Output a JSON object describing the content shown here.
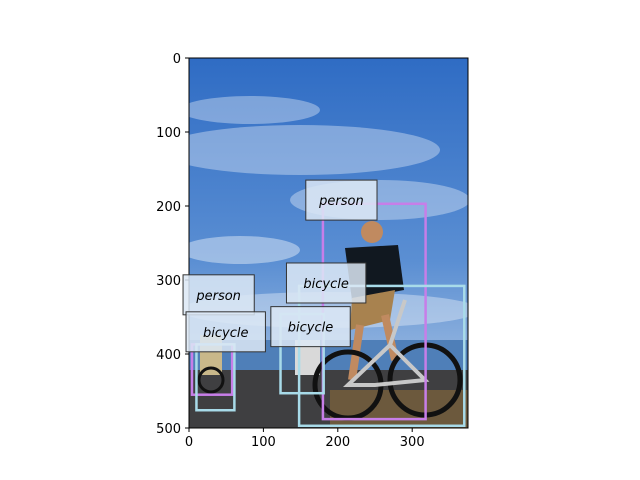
{
  "image": {
    "description_icon": "photo-cyclists-on-seaside-road",
    "sky_top": "#2f6cc4",
    "sky_bottom": "#8fb3dd",
    "ground": "#3f3f41"
  },
  "axes": {
    "x_ticks": [
      "0",
      "100",
      "200",
      "300"
    ],
    "y_ticks": [
      "0",
      "100",
      "200",
      "300",
      "400",
      "500"
    ],
    "x_range": [
      0,
      375
    ],
    "y_range": [
      0,
      500
    ]
  },
  "colors": {
    "person_box": "#c77ee8",
    "bicycle_box": "#a8dbe9",
    "label_fill": "#dce8f5",
    "label_edge": "#333333"
  },
  "detections": [
    {
      "label": "person",
      "class": "person",
      "bbox_data": [
        180,
        197,
        318,
        488
      ],
      "label_anchor": [
        157,
        165
      ]
    },
    {
      "label": "bicycle",
      "class": "bicycle",
      "bbox_data": [
        148,
        308,
        370,
        497
      ],
      "label_anchor": [
        131,
        277
      ]
    },
    {
      "label": "bicycle",
      "class": "bicycle",
      "bbox_data": [
        123,
        346,
        181,
        453
      ],
      "label_anchor": [
        110,
        336
      ]
    },
    {
      "label": "person",
      "class": "person",
      "bbox_data": [
        4,
        387,
        58,
        455
      ],
      "label_anchor": [
        -8,
        293
      ]
    },
    {
      "label": "bicycle",
      "class": "bicycle",
      "bbox_data": [
        10,
        387,
        61,
        476
      ],
      "label_anchor": [
        -4,
        343
      ]
    }
  ]
}
